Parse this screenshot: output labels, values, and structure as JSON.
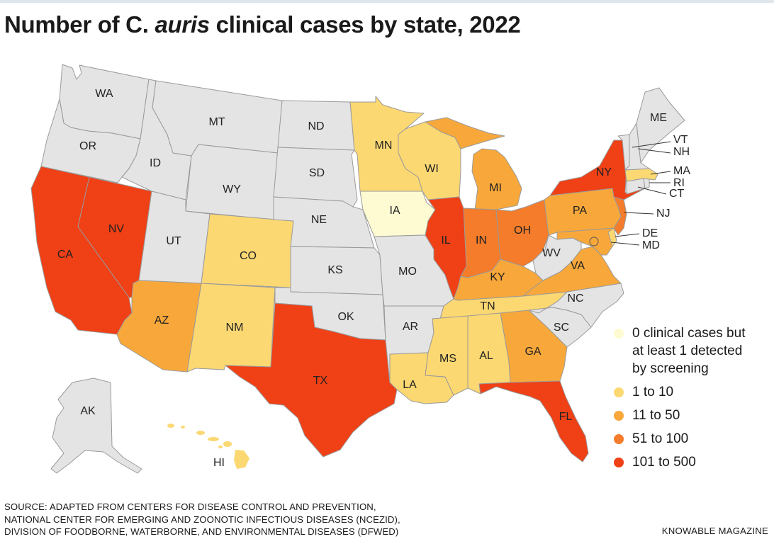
{
  "title": {
    "prefix": "Number of C. ",
    "italic": "auris",
    "suffix": " clinical cases by state, 2022"
  },
  "colors": {
    "none": "#e4e4e4",
    "screening": "#fefbd2",
    "c1_10": "#fcd873",
    "c11_50": "#f8a83a",
    "c51_100": "#f47c2a",
    "c101_500": "#ef4016",
    "border": "#9a9a9a"
  },
  "legend": [
    {
      "key": "screening",
      "label": "0 clinical cases but\nat least 1 detected\nby screening"
    },
    {
      "key": "c1_10",
      "label": "1 to 10"
    },
    {
      "key": "c11_50",
      "label": "11 to 50"
    },
    {
      "key": "c51_100",
      "label": "51 to 100"
    },
    {
      "key": "c101_500",
      "label": "101 to 500"
    }
  ],
  "states": [
    {
      "abbr": "WA",
      "category": "none"
    },
    {
      "abbr": "OR",
      "category": "none"
    },
    {
      "abbr": "CA",
      "category": "c101_500"
    },
    {
      "abbr": "NV",
      "category": "c101_500"
    },
    {
      "abbr": "ID",
      "category": "none"
    },
    {
      "abbr": "MT",
      "category": "none"
    },
    {
      "abbr": "WY",
      "category": "none"
    },
    {
      "abbr": "UT",
      "category": "none"
    },
    {
      "abbr": "AZ",
      "category": "c11_50"
    },
    {
      "abbr": "CO",
      "category": "c1_10"
    },
    {
      "abbr": "NM",
      "category": "c1_10"
    },
    {
      "abbr": "ND",
      "category": "none"
    },
    {
      "abbr": "SD",
      "category": "none"
    },
    {
      "abbr": "NE",
      "category": "none"
    },
    {
      "abbr": "KS",
      "category": "none"
    },
    {
      "abbr": "OK",
      "category": "none"
    },
    {
      "abbr": "TX",
      "category": "c101_500"
    },
    {
      "abbr": "MN",
      "category": "c1_10"
    },
    {
      "abbr": "IA",
      "category": "screening"
    },
    {
      "abbr": "MO",
      "category": "none"
    },
    {
      "abbr": "AR",
      "category": "none"
    },
    {
      "abbr": "LA",
      "category": "c1_10"
    },
    {
      "abbr": "WI",
      "category": "c1_10"
    },
    {
      "abbr": "IL",
      "category": "c101_500"
    },
    {
      "abbr": "MI",
      "category": "c11_50"
    },
    {
      "abbr": "IN",
      "category": "c51_100"
    },
    {
      "abbr": "OH",
      "category": "c51_100"
    },
    {
      "abbr": "KY",
      "category": "c11_50"
    },
    {
      "abbr": "TN",
      "category": "c1_10"
    },
    {
      "abbr": "MS",
      "category": "c1_10"
    },
    {
      "abbr": "AL",
      "category": "c1_10"
    },
    {
      "abbr": "GA",
      "category": "c11_50"
    },
    {
      "abbr": "FL",
      "category": "c101_500"
    },
    {
      "abbr": "SC",
      "category": "none"
    },
    {
      "abbr": "NC",
      "category": "none"
    },
    {
      "abbr": "VA",
      "category": "c11_50"
    },
    {
      "abbr": "WV",
      "category": "none"
    },
    {
      "abbr": "PA",
      "category": "c11_50"
    },
    {
      "abbr": "NY",
      "category": "c101_500"
    },
    {
      "abbr": "NJ",
      "category": "c51_100"
    },
    {
      "abbr": "DE",
      "category": "c1_10"
    },
    {
      "abbr": "MD",
      "category": "c11_50"
    },
    {
      "abbr": "CT",
      "category": "none"
    },
    {
      "abbr": "RI",
      "category": "none"
    },
    {
      "abbr": "MA",
      "category": "c1_10"
    },
    {
      "abbr": "VT",
      "category": "none"
    },
    {
      "abbr": "NH",
      "category": "none"
    },
    {
      "abbr": "ME",
      "category": "none"
    },
    {
      "abbr": "AK",
      "category": "none"
    },
    {
      "abbr": "HI",
      "category": "c1_10"
    }
  ],
  "source": [
    "SOURCE: ADAPTED FROM CENTERS FOR DISEASE CONTROL AND PREVENTION,",
    "NATIONAL CENTER FOR EMERGING AND ZOONOTIC INFECTIOUS DISEASES (NCEZID),",
    "DIVISION OF FOODBORNE, WATERBORNE, AND ENVIRONMENTAL DISEASES (DFWED)"
  ],
  "credit": "KNOWABLE MAGAZINE"
}
